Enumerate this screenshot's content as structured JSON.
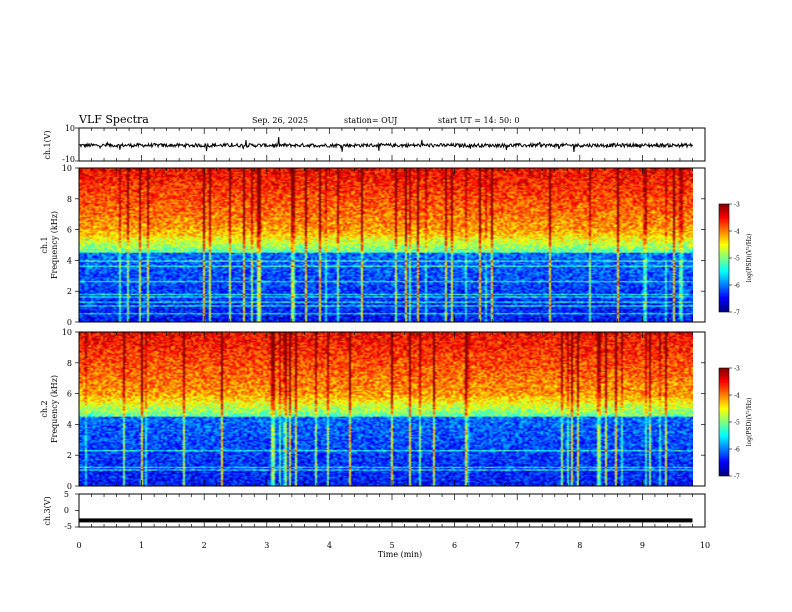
{
  "header": {
    "title": "VLF Spectra",
    "date": "Sep. 26, 2025",
    "station": "station= OUJ",
    "start": "start  UT  =   14: 50: 0"
  },
  "chart_data": [
    {
      "type": "line",
      "name": "ch1-waveform",
      "ylabel": "ch.1(V)",
      "ylim": [
        -10,
        10
      ],
      "yticks": [
        "10",
        "-10"
      ],
      "xlim": [
        0,
        10
      ],
      "baseline": -0.5
    },
    {
      "type": "heatmap",
      "name": "ch1-spectrogram",
      "ylabel_channel": "ch.1",
      "ylabel": "Frequency (kHz)",
      "ylim": [
        0,
        10
      ],
      "yticks": [
        0,
        2,
        4,
        6,
        8,
        10
      ],
      "xlim": [
        0,
        9.8
      ],
      "colorbar": {
        "label": "log(PSD)(V²/Hz)",
        "range": [
          -7,
          -3
        ],
        "ticks": [
          "-3",
          "-4",
          "-5",
          "-6",
          "-7"
        ]
      }
    },
    {
      "type": "heatmap",
      "name": "ch2-spectrogram",
      "ylabel_channel": "ch.2",
      "ylabel": "Frequency (kHz)",
      "ylim": [
        0,
        10
      ],
      "yticks": [
        0,
        2,
        4,
        6,
        8,
        10
      ],
      "xlim": [
        0,
        9.8
      ],
      "colorbar": {
        "label": "log(PSD)(V²/Hz)",
        "range": [
          -7,
          -3
        ],
        "ticks": [
          "-3",
          "-4",
          "-5",
          "-6",
          "-7"
        ]
      }
    },
    {
      "type": "line",
      "name": "ch3-waveform",
      "ylabel": "ch.3(V)",
      "ylim": [
        -5,
        5
      ],
      "yticks": [
        "5",
        "0",
        "-5"
      ],
      "xlim": [
        0,
        10
      ],
      "baseline": -3
    }
  ],
  "xaxis": {
    "label": "Time (min)",
    "ticks": [
      "0",
      "1",
      "2",
      "3",
      "4",
      "5",
      "6",
      "7",
      "8",
      "9",
      "10"
    ]
  }
}
